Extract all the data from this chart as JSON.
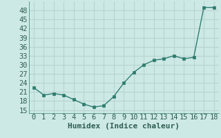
{
  "x": [
    0,
    1,
    2,
    3,
    4,
    5,
    6,
    7,
    8,
    9,
    10,
    11,
    12,
    13,
    14,
    15,
    16,
    17,
    18
  ],
  "y": [
    22.5,
    20.0,
    20.5,
    20.0,
    18.5,
    17.0,
    16.0,
    16.5,
    19.5,
    24.0,
    27.5,
    30.0,
    31.5,
    32.0,
    33.0,
    32.0,
    32.5,
    49.0,
    49.0
  ],
  "xlabel": "Humidex (Indice chaleur)",
  "ylim": [
    14,
    51
  ],
  "xlim": [
    -0.5,
    18.5
  ],
  "yticks": [
    15,
    18,
    21,
    24,
    27,
    30,
    33,
    36,
    39,
    42,
    45,
    48
  ],
  "xticks": [
    0,
    1,
    2,
    3,
    4,
    5,
    6,
    7,
    8,
    9,
    10,
    11,
    12,
    13,
    14,
    15,
    16,
    17,
    18
  ],
  "line_color": "#2e7d6e",
  "marker_color": "#2e7d6e",
  "bg_color": "#cde9e6",
  "grid_color": "#b8d4d0",
  "axis_label_color": "#2e5d50",
  "tick_color": "#2e5d50",
  "font_size": 7.5
}
